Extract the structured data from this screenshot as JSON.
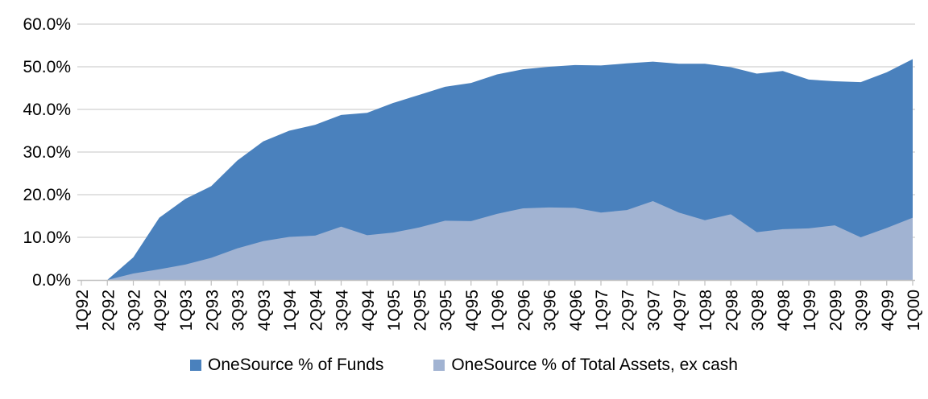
{
  "chart_data": {
    "type": "area",
    "title": "",
    "xlabel": "",
    "ylabel": "",
    "ylim": [
      0,
      60
    ],
    "grid": true,
    "legend_position": "bottom",
    "overlapping_series": true,
    "y_ticks": [
      "0.0%",
      "10.0%",
      "20.0%",
      "30.0%",
      "40.0%",
      "50.0%",
      "60.0%"
    ],
    "categories": [
      "1Q92",
      "2Q92",
      "3Q92",
      "4Q92",
      "1Q93",
      "2Q93",
      "3Q93",
      "4Q93",
      "1Q94",
      "2Q94",
      "3Q94",
      "4Q94",
      "1Q95",
      "2Q95",
      "3Q95",
      "4Q95",
      "1Q96",
      "2Q96",
      "3Q96",
      "4Q96",
      "1Q97",
      "2Q97",
      "3Q97",
      "4Q97",
      "1Q98",
      "2Q98",
      "3Q98",
      "4Q98",
      "1Q99",
      "2Q99",
      "3Q99",
      "4Q99",
      "1Q00"
    ],
    "series": [
      {
        "name": "OneSource % of Funds",
        "color": "#4A81BD",
        "values": [
          0.0,
          0.0,
          5.3,
          14.6,
          19.0,
          22.0,
          28.0,
          32.5,
          35.0,
          36.4,
          38.7,
          39.2,
          41.5,
          43.4,
          45.3,
          46.2,
          48.2,
          49.4,
          50.0,
          50.4,
          50.3,
          50.8,
          51.2,
          50.7,
          50.7,
          49.9,
          48.4,
          49.0,
          47.0,
          46.6,
          46.4,
          48.7,
          51.8
        ]
      },
      {
        "name": "OneSource % of Total Assets, ex cash",
        "color": "#A1B3D2",
        "values": [
          0.0,
          0.0,
          1.5,
          2.5,
          3.6,
          5.2,
          7.4,
          9.1,
          10.1,
          10.4,
          12.5,
          10.5,
          11.1,
          12.3,
          13.9,
          13.8,
          15.5,
          16.8,
          17.0,
          16.9,
          15.8,
          16.4,
          18.5,
          15.8,
          14.0,
          15.4,
          11.2,
          11.9,
          12.1,
          12.8,
          10.0,
          12.2,
          14.6
        ]
      }
    ],
    "style": {
      "gridline_color": "#D9D9D9",
      "axis_color": "#BFBFBF",
      "text_color": "#000000",
      "background": "#FFFFFF"
    }
  }
}
